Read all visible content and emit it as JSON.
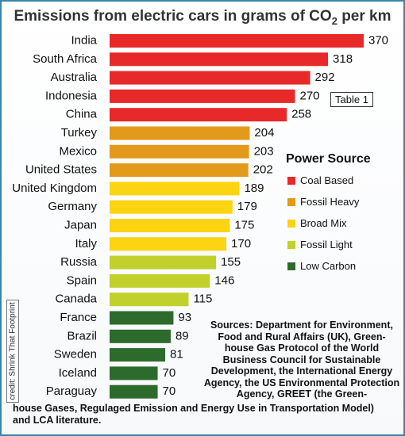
{
  "title": {
    "main": "Emissions from electric cars in grams of CO",
    "sub": "2",
    "tail": " per km"
  },
  "table_label": "Table 1",
  "legend": {
    "title": "Power Source",
    "items": [
      {
        "label": "Coal Based",
        "color": "#e8292a"
      },
      {
        "label": "Fossil Heavy",
        "color": "#e39a1a"
      },
      {
        "label": "Broad Mix",
        "color": "#fcd412"
      },
      {
        "label": "Fossil Light",
        "color": "#c2d02b"
      },
      {
        "label": "Low Carbon",
        "color": "#2d6b2d"
      }
    ]
  },
  "sources": {
    "block": "Sources: Department for Environment, Food and Rural Affairs (UK), Green-house Gas Protocol of the World Business Council for Sustainable Development, the International Energy Agency, the US Environmental Protection Agency, GREET (the Green-",
    "continuation": "house Gases, Regulaged Emission and Energy Use in Transportation Model) and LCA literature."
  },
  "credit": "credit: Shrink That Footprint",
  "chart_data": {
    "type": "bar",
    "orientation": "horizontal",
    "title": "Emissions from electric cars in grams of CO2 per km",
    "categories": [
      "India",
      "South Africa",
      "Australia",
      "Indonesia",
      "China",
      "Turkey",
      "Mexico",
      "United States",
      "United Kingdom",
      "Germany",
      "Japan",
      "Italy",
      "Russia",
      "Spain",
      "Canada",
      "France",
      "Brazil",
      "Sweden",
      "Iceland",
      "Paraguay"
    ],
    "values": [
      370,
      318,
      292,
      270,
      258,
      204,
      203,
      202,
      189,
      179,
      175,
      170,
      155,
      146,
      115,
      93,
      89,
      81,
      70,
      70
    ],
    "power_source": [
      "Coal Based",
      "Coal Based",
      "Coal Based",
      "Coal Based",
      "Coal Based",
      "Fossil Heavy",
      "Fossil Heavy",
      "Fossil Heavy",
      "Broad Mix",
      "Broad Mix",
      "Broad Mix",
      "Broad Mix",
      "Fossil Light",
      "Fossil Light",
      "Fossil Light",
      "Low Carbon",
      "Low Carbon",
      "Low Carbon",
      "Low Carbon",
      "Low Carbon"
    ],
    "data_labels": true,
    "xlim": [
      0,
      370
    ],
    "grid": false,
    "legend_position": "right"
  }
}
